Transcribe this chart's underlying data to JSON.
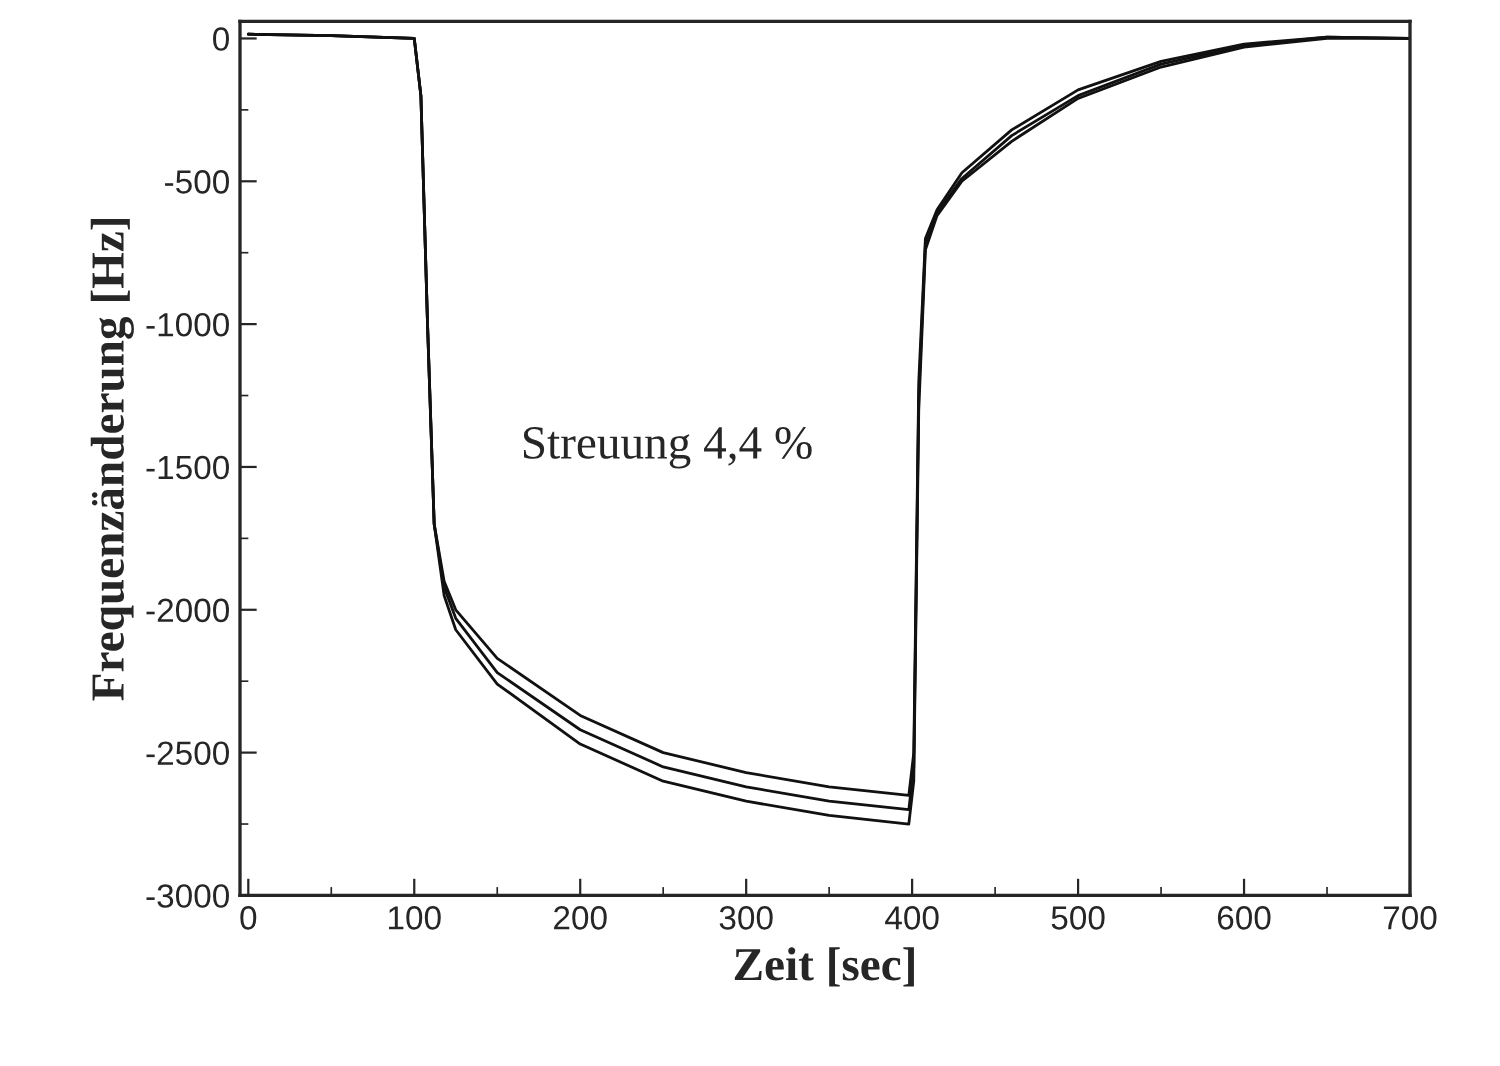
{
  "chart_data": {
    "type": "line",
    "xlabel": "Zeit [sec]",
    "ylabel": "Frequenzänderung [Hz]",
    "xlim": [
      -5,
      700
    ],
    "ylim": [
      -3000,
      60
    ],
    "xticks": [
      0,
      100,
      200,
      300,
      400,
      500,
      600,
      700
    ],
    "yticks": [
      {
        "value": 0,
        "label": "0"
      },
      {
        "value": -500,
        "label": "-500"
      },
      {
        "value": -1000,
        "label": "-1000"
      },
      {
        "value": -1500,
        "label": "-1500"
      },
      {
        "value": -2000,
        "label": "-2000"
      },
      {
        "value": -2500,
        "label": "-2500"
      },
      {
        "value": -3000,
        "label": "-3000"
      }
    ],
    "grid": false,
    "legend": false,
    "marker": "none",
    "line_style": "solid",
    "annotations": [
      "Streuung 4,4 %"
    ],
    "series": [
      {
        "color": "#111111",
        "x": [
          0,
          50,
          100,
          104,
          108,
          112,
          118,
          125,
          150,
          200,
          250,
          300,
          350,
          398,
          401,
          404,
          408,
          415,
          430,
          460,
          500,
          550,
          600,
          650,
          700
        ],
        "values": [
          15,
          10,
          0,
          -200,
          -1000,
          -1700,
          -1900,
          -2000,
          -2170,
          -2370,
          -2500,
          -2570,
          -2620,
          -2650,
          -2500,
          -1200,
          -700,
          -600,
          -470,
          -320,
          -180,
          -80,
          -20,
          5,
          0
        ]
      },
      {
        "color": "#111111",
        "x": [
          0,
          50,
          100,
          104,
          108,
          112,
          118,
          125,
          150,
          200,
          250,
          300,
          350,
          398,
          401,
          404,
          408,
          415,
          430,
          460,
          500,
          550,
          600,
          650,
          700
        ],
        "values": [
          15,
          10,
          0,
          -200,
          -1000,
          -1700,
          -1920,
          -2030,
          -2220,
          -2420,
          -2550,
          -2620,
          -2670,
          -2700,
          -2550,
          -1250,
          -720,
          -610,
          -490,
          -340,
          -200,
          -90,
          -25,
          5,
          0
        ]
      },
      {
        "color": "#111111",
        "x": [
          0,
          50,
          100,
          104,
          108,
          112,
          118,
          125,
          150,
          200,
          250,
          300,
          350,
          398,
          401,
          404,
          408,
          415,
          430,
          460,
          500,
          550,
          600,
          650,
          700
        ],
        "values": [
          15,
          10,
          0,
          -200,
          -1000,
          -1700,
          -1950,
          -2070,
          -2260,
          -2470,
          -2600,
          -2670,
          -2720,
          -2750,
          -2600,
          -1300,
          -740,
          -620,
          -500,
          -360,
          -210,
          -100,
          -30,
          0,
          0
        ]
      }
    ]
  }
}
